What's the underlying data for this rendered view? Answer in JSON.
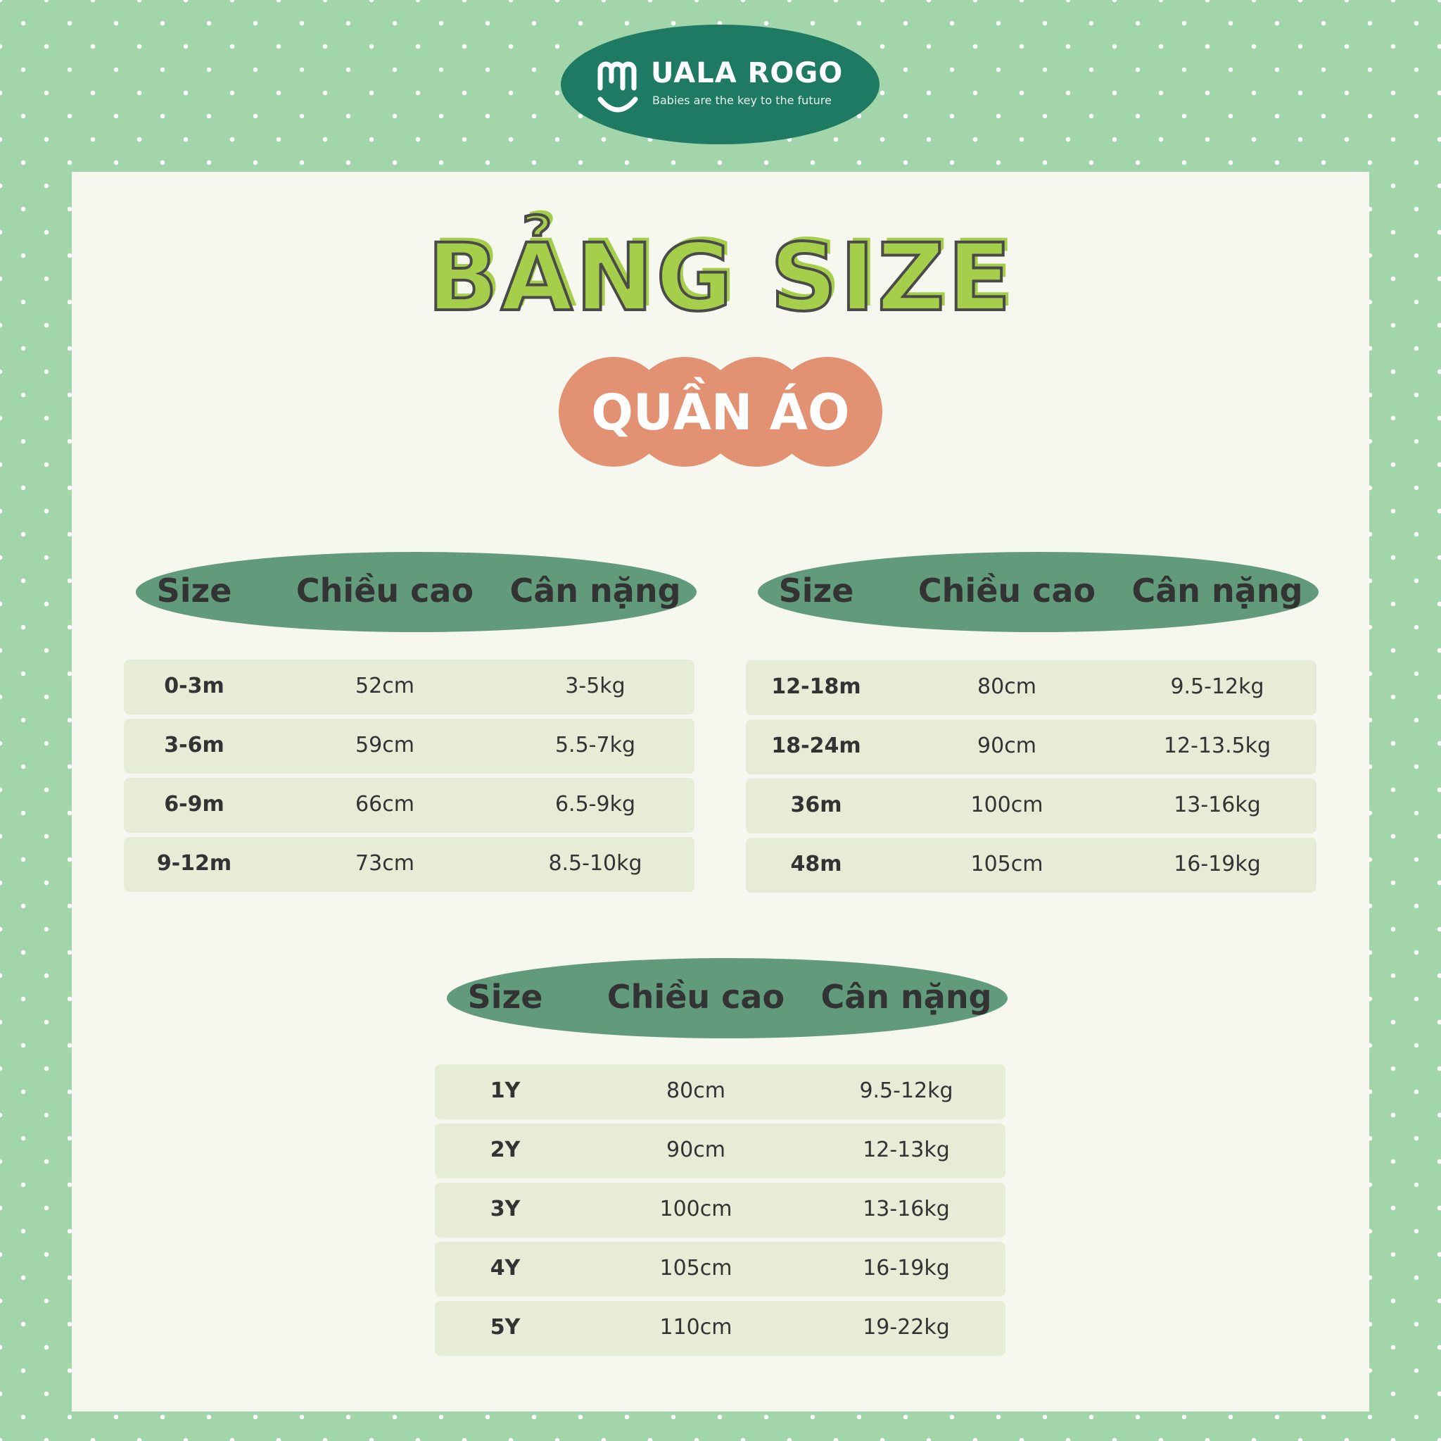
{
  "brand": {
    "name": "UALA ROGO",
    "tagline": "Babies are the key to the future"
  },
  "title": "BẢNG SIZE",
  "subtitle": "QUẦN ÁO",
  "headers": [
    "Size",
    "Chiều cao",
    "Cân nặng"
  ],
  "tables": [
    {
      "rows": [
        [
          "0-3m",
          "52cm",
          "3-5kg"
        ],
        [
          "3-6m",
          "59cm",
          "5.5-7kg"
        ],
        [
          "6-9m",
          "66cm",
          "6.5-9kg"
        ],
        [
          "9-12m",
          "73cm",
          "8.5-10kg"
        ]
      ]
    },
    {
      "rows": [
        [
          "12-18m",
          "80cm",
          "9.5-12kg"
        ],
        [
          "18-24m",
          "90cm",
          "12-13.5kg"
        ],
        [
          "36m",
          "100cm",
          "13-16kg"
        ],
        [
          "48m",
          "105cm",
          "16-19kg"
        ]
      ]
    },
    {
      "rows": [
        [
          "1Y",
          "80cm",
          "9.5-12kg"
        ],
        [
          "2Y",
          "90cm",
          "12-13kg"
        ],
        [
          "3Y",
          "100cm",
          "13-16kg"
        ],
        [
          "4Y",
          "105cm",
          "16-19kg"
        ],
        [
          "5Y",
          "110cm",
          "19-22kg"
        ]
      ]
    }
  ],
  "colors": {
    "border": "#a2d6aa",
    "panel": "#f6f7ee",
    "logo": "#1f7a64",
    "title": "#a5cf4a",
    "pill": "#e39173",
    "header": "#619b7b",
    "row": "#e6ecd6"
  }
}
